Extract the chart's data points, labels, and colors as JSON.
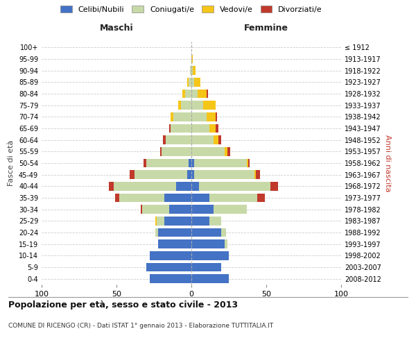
{
  "age_groups": [
    "0-4",
    "5-9",
    "10-14",
    "15-19",
    "20-24",
    "25-29",
    "30-34",
    "35-39",
    "40-44",
    "45-49",
    "50-54",
    "55-59",
    "60-64",
    "65-69",
    "70-74",
    "75-79",
    "80-84",
    "85-89",
    "90-94",
    "95-99",
    "100+"
  ],
  "birth_years": [
    "2008-2012",
    "2003-2007",
    "1998-2002",
    "1993-1997",
    "1988-1992",
    "1983-1987",
    "1978-1982",
    "1973-1977",
    "1968-1972",
    "1963-1967",
    "1958-1962",
    "1953-1957",
    "1948-1952",
    "1943-1947",
    "1938-1942",
    "1933-1937",
    "1928-1932",
    "1923-1927",
    "1918-1922",
    "1913-1917",
    "≤ 1912"
  ],
  "males": {
    "celibi": [
      28,
      30,
      28,
      22,
      22,
      18,
      15,
      18,
      10,
      3,
      2,
      0,
      0,
      0,
      0,
      0,
      0,
      0,
      0,
      0,
      0
    ],
    "coniugati": [
      0,
      0,
      0,
      0,
      2,
      5,
      18,
      30,
      42,
      35,
      28,
      20,
      17,
      14,
      12,
      7,
      4,
      2,
      1,
      0,
      0
    ],
    "vedovi": [
      0,
      0,
      0,
      0,
      0,
      1,
      0,
      0,
      0,
      0,
      0,
      0,
      0,
      0,
      2,
      2,
      2,
      1,
      0,
      0,
      0
    ],
    "divorziati": [
      0,
      0,
      0,
      0,
      0,
      0,
      1,
      3,
      3,
      3,
      2,
      1,
      2,
      1,
      0,
      0,
      0,
      0,
      0,
      0,
      0
    ]
  },
  "females": {
    "nubili": [
      25,
      20,
      25,
      22,
      20,
      12,
      15,
      12,
      5,
      2,
      2,
      0,
      0,
      0,
      0,
      0,
      0,
      0,
      0,
      0,
      0
    ],
    "coniugate": [
      0,
      0,
      0,
      2,
      3,
      8,
      22,
      32,
      48,
      40,
      35,
      22,
      15,
      12,
      10,
      8,
      4,
      2,
      1,
      0,
      0
    ],
    "vedove": [
      0,
      0,
      0,
      0,
      0,
      0,
      0,
      0,
      0,
      1,
      1,
      2,
      3,
      4,
      6,
      8,
      6,
      4,
      2,
      1,
      0
    ],
    "divorziate": [
      0,
      0,
      0,
      0,
      0,
      0,
      0,
      5,
      5,
      3,
      1,
      2,
      2,
      2,
      1,
      0,
      1,
      0,
      0,
      0,
      0
    ]
  },
  "colors": {
    "celibi": "#4472C4",
    "coniugati": "#c8d9a8",
    "vedovi": "#f5c518",
    "divorziati": "#c0392b"
  },
  "title": "Popolazione per età, sesso e stato civile - 2013",
  "subtitle": "COMUNE DI RICENGO (CR) - Dati ISTAT 1° gennaio 2013 - Elaborazione TUTTITALIA.IT",
  "xlabel_maschi": "Maschi",
  "xlabel_femmine": "Femmine",
  "ylabel_left": "Fasce di età",
  "ylabel_right": "Anni di nascita",
  "xlim": 100,
  "legend_labels": [
    "Celibi/Nubili",
    "Coniugati/e",
    "Vedovi/e",
    "Divorziati/e"
  ],
  "bg_color": "#ffffff",
  "grid_color": "#cccccc"
}
